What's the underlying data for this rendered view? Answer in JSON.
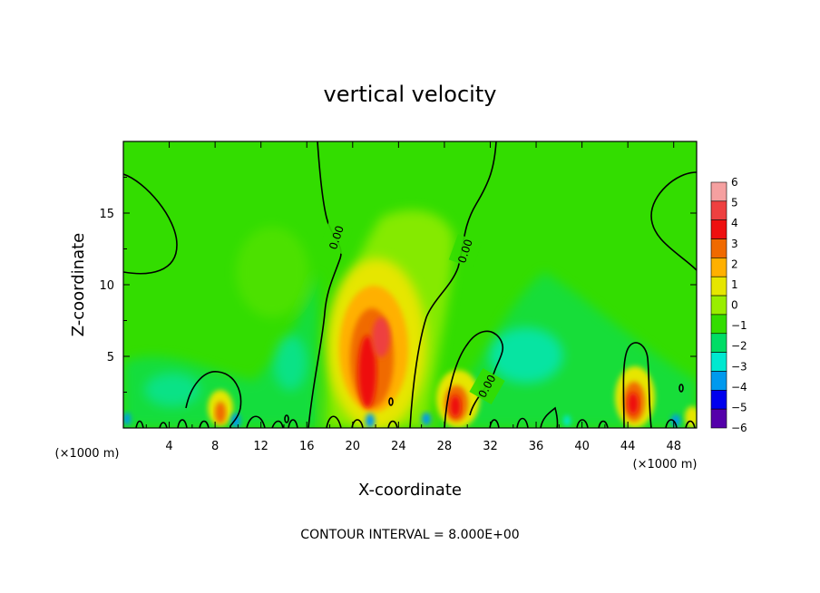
{
  "chart_data": {
    "type": "heatmap",
    "title": "vertical velocity",
    "xlabel": "X-coordinate",
    "ylabel": "Z-coordinate",
    "x_unit": "(×1000 m)",
    "xlim": [
      0,
      50
    ],
    "ylim": [
      0,
      20
    ],
    "x_ticks": [
      "4",
      "8",
      "12",
      "16",
      "20",
      "24",
      "28",
      "32",
      "36",
      "40",
      "44",
      "48"
    ],
    "y_ticks": [
      "5",
      "10",
      "15"
    ],
    "colorbar": {
      "labels": [
        "6",
        "5",
        "4",
        "3",
        "2",
        "1",
        "0",
        "−1",
        "−2",
        "−3",
        "−4",
        "−5",
        "−6"
      ],
      "colors": [
        "#f5a0a0",
        "#ee4040",
        "#ee1010",
        "#f06a00",
        "#ffb000",
        "#e6e600",
        "#99ee00",
        "#33dd00",
        "#00dd66",
        "#00e8d0",
        "#0099ee",
        "#0000ee",
        "#5500aa"
      ]
    },
    "features": [
      {
        "kind": "updraft",
        "x": 22,
        "z": 6,
        "w": 4.5
      },
      {
        "kind": "updraft",
        "x": 29.5,
        "z": 2,
        "w": 3
      },
      {
        "kind": "updraft",
        "x": 44.5,
        "z": 2,
        "w": 3
      },
      {
        "kind": "updraft",
        "x": 8.5,
        "z": 1,
        "w": 2
      },
      {
        "kind": "downdraft",
        "x": 37,
        "z": 5,
        "w": -1.5
      },
      {
        "kind": "downdraft",
        "x": 14,
        "z": 5,
        "w": -1
      },
      {
        "kind": "downdraft",
        "x": 4,
        "z": 2.5,
        "w": -1
      }
    ],
    "contour_labels": [
      "0.00",
      "0.00",
      "0.00"
    ],
    "note": "CONTOUR INTERVAL = 8.000E+00"
  }
}
